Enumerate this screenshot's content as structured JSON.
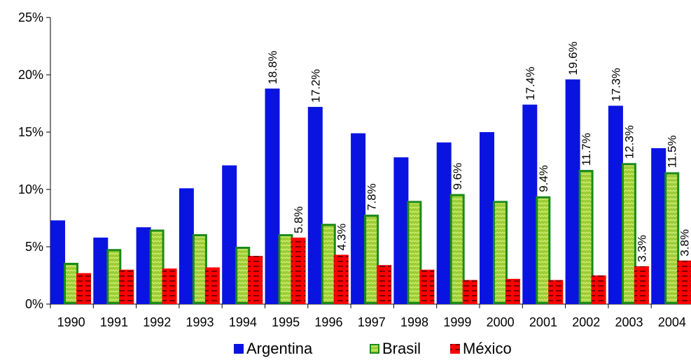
{
  "chart_data": {
    "type": "bar",
    "categories": [
      "1990",
      "1991",
      "1992",
      "1993",
      "1994",
      "1995",
      "1996",
      "1997",
      "1998",
      "1999",
      "2000",
      "2001",
      "2002",
      "2003",
      "2004"
    ],
    "series": [
      {
        "name": "Argentina",
        "color": "#0a14e0",
        "values": [
          7.3,
          5.8,
          6.7,
          10.1,
          12.1,
          18.8,
          17.2,
          14.9,
          12.8,
          14.1,
          15.0,
          17.4,
          19.6,
          17.3,
          13.6
        ],
        "labels": [
          "",
          "",
          "",
          "",
          "",
          "18.8%",
          "17.2%",
          "",
          "",
          "",
          "",
          "17.4%",
          "19.6%",
          "17.3%",
          ""
        ]
      },
      {
        "name": "Brasil",
        "color": "#9acd32",
        "values": [
          3.6,
          4.8,
          6.5,
          6.1,
          5.0,
          6.1,
          7.0,
          7.8,
          9.0,
          9.6,
          9.0,
          9.4,
          11.7,
          12.3,
          11.5
        ],
        "labels": [
          "",
          "",
          "",
          "",
          "",
          "",
          "",
          "7.8%",
          "",
          "9.6%",
          "",
          "9.4%",
          "11.7%",
          "12.3%",
          "11.5%"
        ]
      },
      {
        "name": "México",
        "color": "#ff0000",
        "values": [
          2.7,
          3.0,
          3.1,
          3.2,
          4.2,
          5.8,
          4.3,
          3.4,
          3.0,
          2.1,
          2.2,
          2.1,
          2.5,
          3.3,
          3.8
        ],
        "labels": [
          "",
          "",
          "",
          "",
          "",
          "5.8%",
          "4.3%",
          "",
          "",
          "",
          "",
          "",
          "",
          "3.3%",
          "3.8%"
        ]
      }
    ],
    "yticks": [
      "0%",
      "5%",
      "10%",
      "15%",
      "20%",
      "25%"
    ],
    "ylim": [
      0,
      25
    ],
    "legend_position": "bottom",
    "grid": false
  }
}
